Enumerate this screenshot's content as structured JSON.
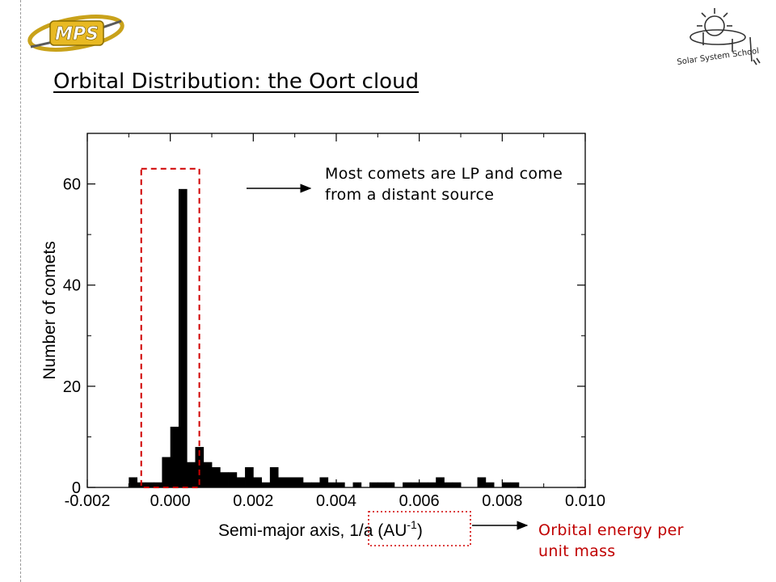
{
  "slide": {
    "title": "Orbital Distribution: the Oort cloud",
    "logos": {
      "left": "MPS",
      "right": "Solar System School"
    }
  },
  "annotations": {
    "top": [
      "Most comets are LP and come",
      "from a distant source"
    ],
    "bottom": [
      "Orbital energy per",
      "unit mass"
    ]
  },
  "colors": {
    "bars": "#000000",
    "highlight_box": "#d00000",
    "annotation_red": "#c00000"
  },
  "chart_data": {
    "type": "bar",
    "title": "",
    "xlabel": "Semi-major axis, 1/a (AU",
    "xlabel_sup": "-1",
    "xlabel_end": ")",
    "ylabel": "Number of comets",
    "xlim": [
      -0.002,
      0.01
    ],
    "ylim": [
      0,
      70
    ],
    "xticks": [
      -0.002,
      0.0,
      0.002,
      0.004,
      0.006,
      0.008,
      0.01
    ],
    "xtick_labels": [
      "-0.002",
      "0.000",
      "0.002",
      "0.004",
      "0.006",
      "0.008",
      "0.010"
    ],
    "yticks": [
      0,
      20,
      40,
      60
    ],
    "ytick_labels": [
      "0",
      "20",
      "40",
      "60"
    ],
    "bin_width": 0.0002,
    "bins": [
      {
        "x": -0.0009,
        "y": 2
      },
      {
        "x": -0.0007,
        "y": 1
      },
      {
        "x": -0.0005,
        "y": 1
      },
      {
        "x": -0.0003,
        "y": 1
      },
      {
        "x": -0.0001,
        "y": 6
      },
      {
        "x": 0.0001,
        "y": 12
      },
      {
        "x": 0.0003,
        "y": 59
      },
      {
        "x": 0.0005,
        "y": 5
      },
      {
        "x": 0.0007,
        "y": 8
      },
      {
        "x": 0.0009,
        "y": 5
      },
      {
        "x": 0.0011,
        "y": 4
      },
      {
        "x": 0.0013,
        "y": 3
      },
      {
        "x": 0.0015,
        "y": 3
      },
      {
        "x": 0.0017,
        "y": 2
      },
      {
        "x": 0.0019,
        "y": 4
      },
      {
        "x": 0.0021,
        "y": 2
      },
      {
        "x": 0.0023,
        "y": 1
      },
      {
        "x": 0.0025,
        "y": 4
      },
      {
        "x": 0.0027,
        "y": 2
      },
      {
        "x": 0.0029,
        "y": 2
      },
      {
        "x": 0.0031,
        "y": 2
      },
      {
        "x": 0.0033,
        "y": 1
      },
      {
        "x": 0.0035,
        "y": 1
      },
      {
        "x": 0.0037,
        "y": 2
      },
      {
        "x": 0.0039,
        "y": 1
      },
      {
        "x": 0.0041,
        "y": 1
      },
      {
        "x": 0.0045,
        "y": 1
      },
      {
        "x": 0.0049,
        "y": 1
      },
      {
        "x": 0.0051,
        "y": 1
      },
      {
        "x": 0.0053,
        "y": 1
      },
      {
        "x": 0.0057,
        "y": 1
      },
      {
        "x": 0.0059,
        "y": 1
      },
      {
        "x": 0.0061,
        "y": 1
      },
      {
        "x": 0.0063,
        "y": 1
      },
      {
        "x": 0.0065,
        "y": 2
      },
      {
        "x": 0.0067,
        "y": 1
      },
      {
        "x": 0.0069,
        "y": 1
      },
      {
        "x": 0.0075,
        "y": 2
      },
      {
        "x": 0.0077,
        "y": 1
      },
      {
        "x": 0.0081,
        "y": 1
      },
      {
        "x": 0.0083,
        "y": 1
      }
    ],
    "highlight_region": {
      "x": [
        -0.0007,
        0.0007
      ],
      "y": [
        0,
        63
      ]
    }
  }
}
